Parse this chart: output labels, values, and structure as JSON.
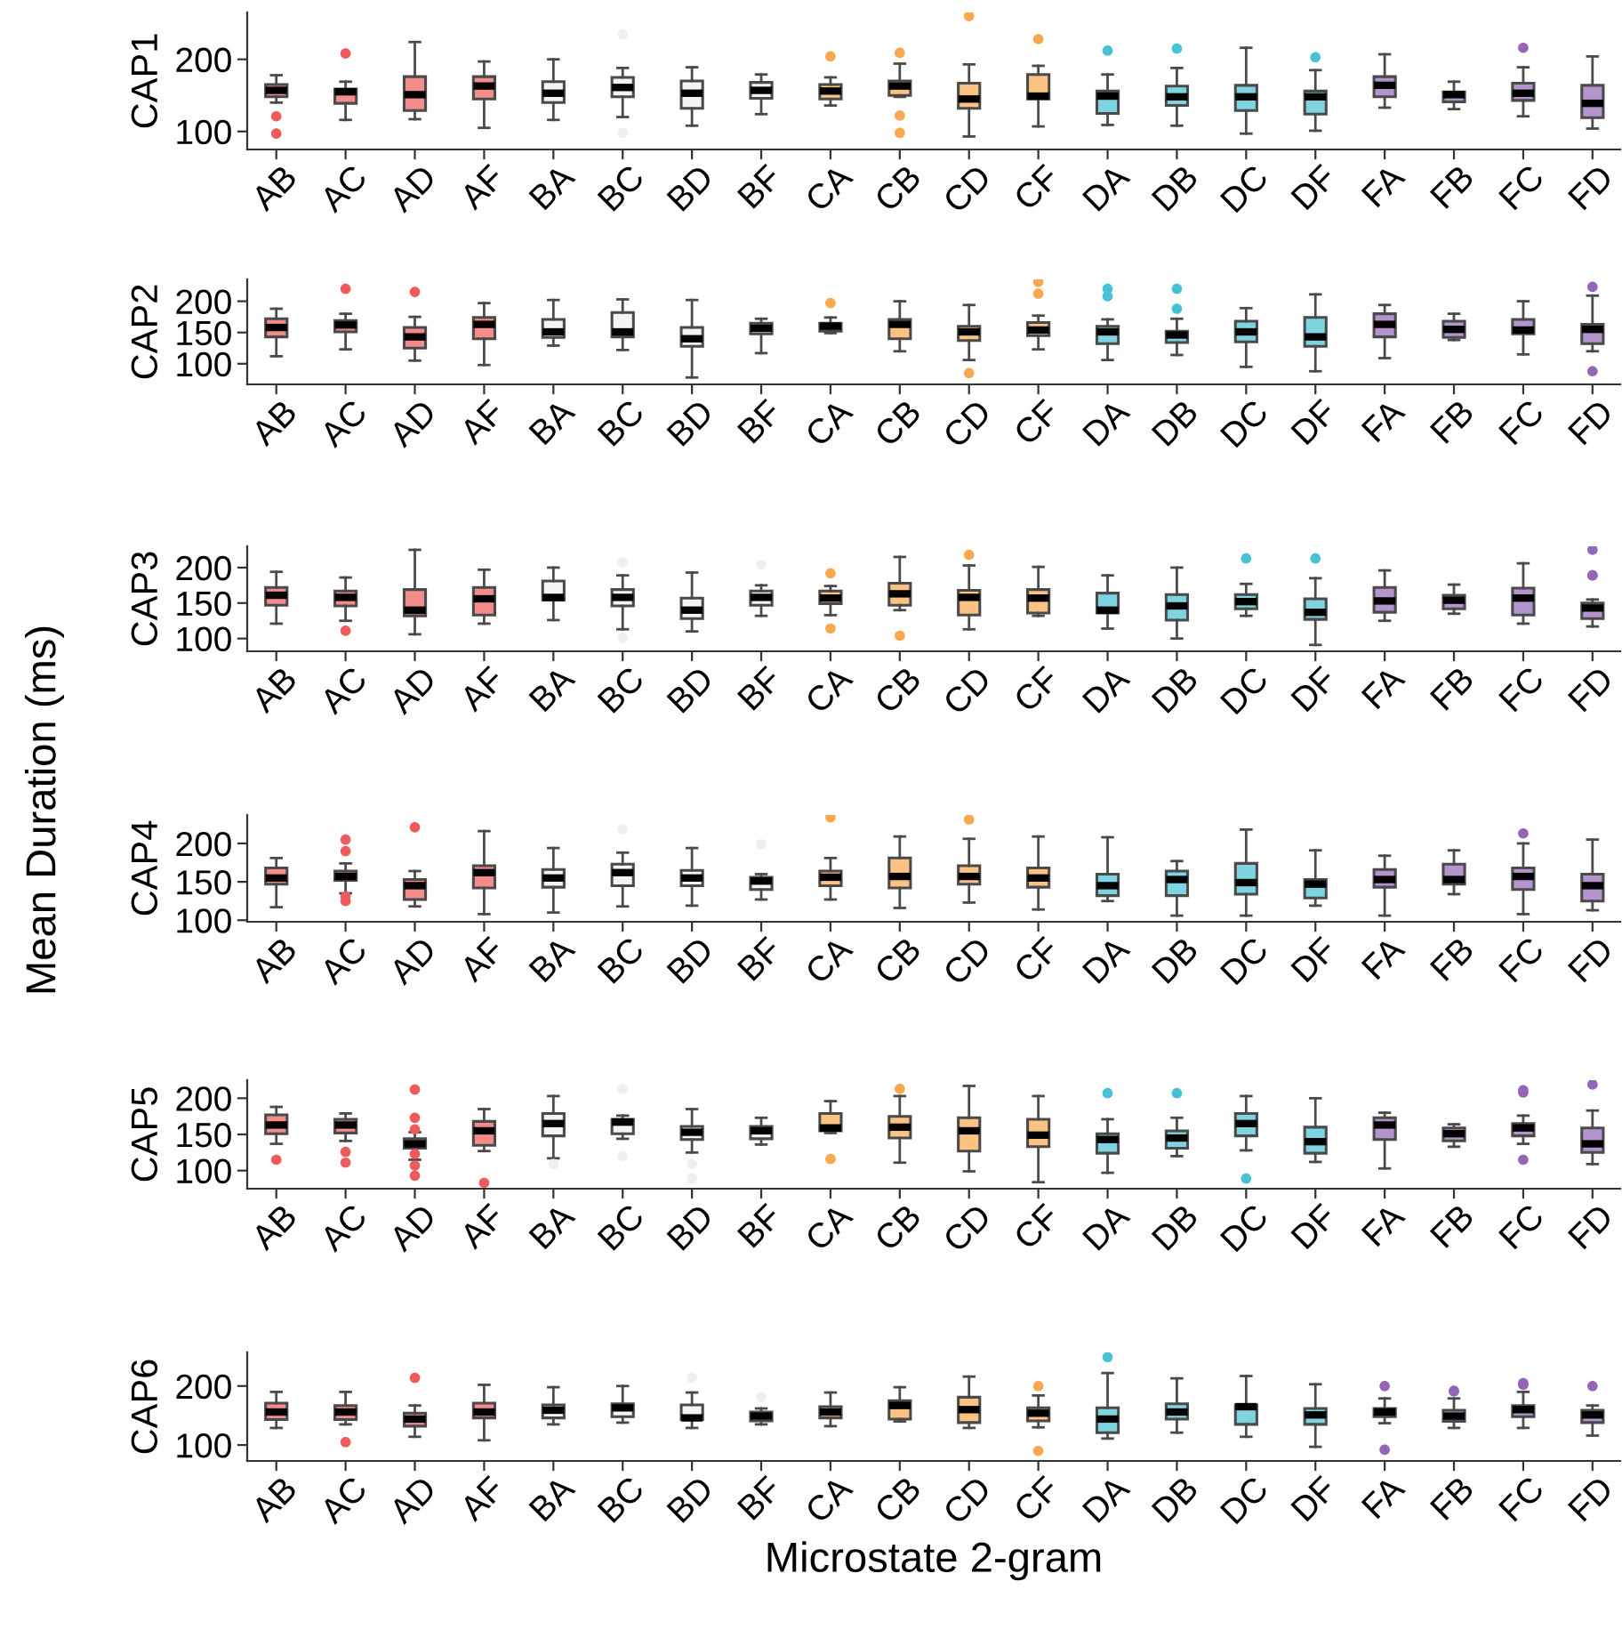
{
  "chart_data": [
    {
      "type": "box",
      "ylabel": "CAP1",
      "ylim": [
        75,
        265
      ],
      "yticks": [
        100,
        200
      ],
      "categories": [
        "AB",
        "AC",
        "AD",
        "AF",
        "BA",
        "BC",
        "BD",
        "BF",
        "CA",
        "CB",
        "CD",
        "CF",
        "DA",
        "DB",
        "DC",
        "DF",
        "FA",
        "FB",
        "FC",
        "FD"
      ],
      "colors": [
        "#f48c8c",
        "#f48c8c",
        "#f48c8c",
        "#f48c8c",
        "#f4f4f4",
        "#f4f4f4",
        "#f4f4f4",
        "#f4f4f4",
        "#fac384",
        "#fac384",
        "#fac384",
        "#fac384",
        "#7ed4e1",
        "#7ed4e1",
        "#7ed4e1",
        "#7ed4e1",
        "#b494cd",
        "#b494cd",
        "#b494cd",
        "#b494cd"
      ],
      "boxes": [
        {
          "low": 140,
          "q1": 148,
          "median": 157,
          "q3": 165,
          "high": 178,
          "outliers": [
            121,
            97
          ]
        },
        {
          "low": 116,
          "q1": 139,
          "median": 155,
          "q3": 159,
          "high": 169,
          "outliers": [
            208
          ]
        },
        {
          "low": 117,
          "q1": 129,
          "median": 151,
          "q3": 176,
          "high": 224
        },
        {
          "low": 105,
          "q1": 145,
          "median": 163,
          "q3": 176,
          "high": 197
        },
        {
          "low": 116,
          "q1": 140,
          "median": 153,
          "q3": 169,
          "high": 200
        },
        {
          "low": 120,
          "q1": 148,
          "median": 161,
          "q3": 175,
          "high": 188,
          "outliers": [
            235,
            98
          ]
        },
        {
          "low": 108,
          "q1": 132,
          "median": 153,
          "q3": 170,
          "high": 189
        },
        {
          "low": 124,
          "q1": 146,
          "median": 157,
          "q3": 168,
          "high": 179
        },
        {
          "low": 136,
          "q1": 145,
          "median": 156,
          "q3": 165,
          "high": 175,
          "outliers": [
            204
          ]
        },
        {
          "low": 148,
          "q1": 150,
          "median": 163,
          "q3": 170,
          "high": 194,
          "outliers": [
            209,
            122,
            98
          ]
        },
        {
          "low": 93,
          "q1": 132,
          "median": 145,
          "q3": 167,
          "high": 193,
          "outliers": [
            260
          ]
        },
        {
          "low": 107,
          "q1": 145,
          "median": 149,
          "q3": 179,
          "high": 191,
          "outliers": [
            228
          ]
        },
        {
          "low": 109,
          "q1": 125,
          "median": 149,
          "q3": 156,
          "high": 179,
          "outliers": [
            212
          ]
        },
        {
          "low": 108,
          "q1": 136,
          "median": 148,
          "q3": 163,
          "high": 188,
          "outliers": [
            215
          ]
        },
        {
          "low": 97,
          "q1": 129,
          "median": 148,
          "q3": 164,
          "high": 216
        },
        {
          "low": 101,
          "q1": 124,
          "median": 148,
          "q3": 156,
          "high": 185,
          "outliers": [
            203
          ]
        },
        {
          "low": 133,
          "q1": 148,
          "median": 164,
          "q3": 176,
          "high": 207
        },
        {
          "low": 131,
          "q1": 141,
          "median": 151,
          "q3": 155,
          "high": 169
        },
        {
          "low": 121,
          "q1": 143,
          "median": 153,
          "q3": 167,
          "high": 189,
          "outliers": [
            216
          ]
        },
        {
          "low": 104,
          "q1": 119,
          "median": 139,
          "q3": 164,
          "high": 204
        }
      ]
    },
    {
      "type": "box",
      "ylabel": "CAP2",
      "ylim": [
        67,
        235
      ],
      "yticks": [
        100,
        150,
        200
      ],
      "categories": [
        "AB",
        "AC",
        "AD",
        "AF",
        "BA",
        "BC",
        "BD",
        "BF",
        "CA",
        "CB",
        "CD",
        "CF",
        "DA",
        "DB",
        "DC",
        "DF",
        "FA",
        "FB",
        "FC",
        "FD"
      ],
      "colors": [
        "#f48c8c",
        "#f48c8c",
        "#f48c8c",
        "#f48c8c",
        "#f4f4f4",
        "#f4f4f4",
        "#f4f4f4",
        "#f4f4f4",
        "#fac384",
        "#fac384",
        "#fac384",
        "#fac384",
        "#7ed4e1",
        "#7ed4e1",
        "#7ed4e1",
        "#7ed4e1",
        "#b494cd",
        "#b494cd",
        "#b494cd",
        "#b494cd"
      ],
      "boxes": [
        {
          "low": 112,
          "q1": 143,
          "median": 158,
          "q3": 172,
          "high": 188
        },
        {
          "low": 123,
          "q1": 151,
          "median": 162,
          "q3": 169,
          "high": 180,
          "outliers": [
            220
          ]
        },
        {
          "low": 105,
          "q1": 125,
          "median": 143,
          "q3": 158,
          "high": 175,
          "outliers": [
            215
          ]
        },
        {
          "low": 98,
          "q1": 140,
          "median": 163,
          "q3": 174,
          "high": 197
        },
        {
          "low": 129,
          "q1": 142,
          "median": 151,
          "q3": 171,
          "high": 202
        },
        {
          "low": 122,
          "q1": 143,
          "median": 151,
          "q3": 182,
          "high": 203
        },
        {
          "low": 78,
          "q1": 128,
          "median": 140,
          "q3": 158,
          "high": 202
        },
        {
          "low": 117,
          "q1": 148,
          "median": 157,
          "q3": 165,
          "high": 172
        },
        {
          "low": 149,
          "q1": 152,
          "median": 160,
          "q3": 165,
          "high": 174,
          "outliers": [
            197
          ]
        },
        {
          "low": 120,
          "q1": 140,
          "median": 163,
          "q3": 171,
          "high": 200
        },
        {
          "low": 106,
          "q1": 137,
          "median": 151,
          "q3": 160,
          "high": 194,
          "outliers": [
            85
          ]
        },
        {
          "low": 123,
          "q1": 145,
          "median": 154,
          "q3": 166,
          "high": 177,
          "outliers": [
            231,
            212
          ]
        },
        {
          "low": 106,
          "q1": 132,
          "median": 151,
          "q3": 160,
          "high": 171,
          "outliers": [
            220,
            208
          ]
        },
        {
          "low": 114,
          "q1": 134,
          "median": 146,
          "q3": 152,
          "high": 172,
          "outliers": [
            220,
            188
          ]
        },
        {
          "low": 95,
          "q1": 135,
          "median": 151,
          "q3": 168,
          "high": 189
        },
        {
          "low": 88,
          "q1": 128,
          "median": 143,
          "q3": 174,
          "high": 211
        },
        {
          "low": 109,
          "q1": 143,
          "median": 163,
          "q3": 180,
          "high": 194
        },
        {
          "low": 138,
          "q1": 142,
          "median": 155,
          "q3": 168,
          "high": 180
        },
        {
          "low": 115,
          "q1": 148,
          "median": 154,
          "q3": 171,
          "high": 200
        },
        {
          "low": 120,
          "q1": 132,
          "median": 155,
          "q3": 163,
          "high": 209,
          "outliers": [
            223,
            88
          ]
        }
      ]
    },
    {
      "type": "box",
      "ylabel": "CAP3",
      "ylim": [
        82,
        230
      ],
      "yticks": [
        100,
        150,
        200
      ],
      "annotations": [
        "Mean Duration (ms)"
      ],
      "categories": [
        "AB",
        "AC",
        "AD",
        "AF",
        "BA",
        "BC",
        "BD",
        "BF",
        "CA",
        "CB",
        "CD",
        "CF",
        "DA",
        "DB",
        "DC",
        "DF",
        "FA",
        "FB",
        "FC",
        "FD"
      ],
      "colors": [
        "#f48c8c",
        "#f48c8c",
        "#f48c8c",
        "#f48c8c",
        "#f4f4f4",
        "#f4f4f4",
        "#f4f4f4",
        "#f4f4f4",
        "#fac384",
        "#fac384",
        "#fac384",
        "#fac384",
        "#7ed4e1",
        "#7ed4e1",
        "#7ed4e1",
        "#7ed4e1",
        "#b494cd",
        "#b494cd",
        "#b494cd",
        "#b494cd"
      ],
      "boxes": [
        {
          "low": 121,
          "q1": 147,
          "median": 161,
          "q3": 172,
          "high": 194
        },
        {
          "low": 125,
          "q1": 146,
          "median": 158,
          "q3": 167,
          "high": 186,
          "outliers": [
            111
          ]
        },
        {
          "low": 106,
          "q1": 132,
          "median": 140,
          "q3": 169,
          "high": 225
        },
        {
          "low": 121,
          "q1": 133,
          "median": 156,
          "q3": 172,
          "high": 197
        },
        {
          "low": 126,
          "q1": 154,
          "median": 158,
          "q3": 181,
          "high": 200
        },
        {
          "low": 113,
          "q1": 146,
          "median": 158,
          "q3": 169,
          "high": 189,
          "outliers": [
            207,
            101
          ]
        },
        {
          "low": 110,
          "q1": 128,
          "median": 140,
          "q3": 157,
          "high": 193
        },
        {
          "low": 132,
          "q1": 147,
          "median": 158,
          "q3": 167,
          "high": 175,
          "outliers": [
            204
          ]
        },
        {
          "low": 133,
          "q1": 149,
          "median": 157,
          "q3": 167,
          "high": 174,
          "outliers": [
            192,
            114
          ]
        },
        {
          "low": 140,
          "q1": 147,
          "median": 163,
          "q3": 178,
          "high": 215,
          "outliers": [
            104
          ]
        },
        {
          "low": 113,
          "q1": 133,
          "median": 158,
          "q3": 168,
          "high": 203,
          "outliers": [
            218
          ]
        },
        {
          "low": 132,
          "q1": 136,
          "median": 157,
          "q3": 169,
          "high": 201
        },
        {
          "low": 114,
          "q1": 136,
          "median": 140,
          "q3": 164,
          "high": 189
        },
        {
          "low": 100,
          "q1": 126,
          "median": 146,
          "q3": 162,
          "high": 200
        },
        {
          "low": 132,
          "q1": 142,
          "median": 152,
          "q3": 162,
          "high": 177,
          "outliers": [
            213
          ]
        },
        {
          "low": 91,
          "q1": 127,
          "median": 137,
          "q3": 156,
          "high": 185,
          "outliers": [
            213
          ]
        },
        {
          "low": 125,
          "q1": 137,
          "median": 153,
          "q3": 172,
          "high": 196
        },
        {
          "low": 135,
          "q1": 142,
          "median": 154,
          "q3": 161,
          "high": 176
        },
        {
          "low": 121,
          "q1": 133,
          "median": 157,
          "q3": 171,
          "high": 206
        },
        {
          "low": 117,
          "q1": 128,
          "median": 143,
          "q3": 150,
          "high": 155,
          "outliers": [
            225,
            189,
            189
          ]
        }
      ]
    },
    {
      "type": "box",
      "ylabel": "CAP4",
      "ylim": [
        98,
        237
      ],
      "yticks": [
        100,
        150,
        200
      ],
      "categories": [
        "AB",
        "AC",
        "AD",
        "AF",
        "BA",
        "BC",
        "BD",
        "BF",
        "CA",
        "CB",
        "CD",
        "CF",
        "DA",
        "DB",
        "DC",
        "DF",
        "FA",
        "FB",
        "FC",
        "FD"
      ],
      "colors": [
        "#f48c8c",
        "#f48c8c",
        "#f48c8c",
        "#f48c8c",
        "#f4f4f4",
        "#f4f4f4",
        "#f4f4f4",
        "#f4f4f4",
        "#fac384",
        "#fac384",
        "#fac384",
        "#fac384",
        "#7ed4e1",
        "#7ed4e1",
        "#7ed4e1",
        "#7ed4e1",
        "#b494cd",
        "#b494cd",
        "#b494cd",
        "#b494cd"
      ],
      "boxes": [
        {
          "low": 117,
          "q1": 147,
          "median": 155,
          "q3": 168,
          "high": 181
        },
        {
          "low": 135,
          "q1": 152,
          "median": 157,
          "q3": 164,
          "high": 174,
          "outliers": [
            205,
            190,
            131,
            125
          ]
        },
        {
          "low": 118,
          "q1": 127,
          "median": 145,
          "q3": 153,
          "high": 164,
          "outliers": [
            221
          ]
        },
        {
          "low": 108,
          "q1": 142,
          "median": 162,
          "q3": 171,
          "high": 216
        },
        {
          "low": 110,
          "q1": 143,
          "median": 155,
          "q3": 166,
          "high": 194
        },
        {
          "low": 118,
          "q1": 145,
          "median": 162,
          "q3": 173,
          "high": 188,
          "outliers": [
            218
          ]
        },
        {
          "low": 119,
          "q1": 145,
          "median": 155,
          "q3": 165,
          "high": 194
        },
        {
          "low": 127,
          "q1": 140,
          "median": 151,
          "q3": 156,
          "high": 160,
          "outliers": [
            199
          ]
        },
        {
          "low": 127,
          "q1": 145,
          "median": 156,
          "q3": 164,
          "high": 181,
          "outliers": [
            234
          ]
        },
        {
          "low": 116,
          "q1": 142,
          "median": 157,
          "q3": 181,
          "high": 209
        },
        {
          "low": 123,
          "q1": 147,
          "median": 157,
          "q3": 171,
          "high": 206,
          "outliers": [
            231
          ]
        },
        {
          "low": 114,
          "q1": 143,
          "median": 155,
          "q3": 168,
          "high": 209
        },
        {
          "low": 125,
          "q1": 132,
          "median": 145,
          "q3": 160,
          "high": 208
        },
        {
          "low": 106,
          "q1": 132,
          "median": 153,
          "q3": 164,
          "high": 177
        },
        {
          "low": 106,
          "q1": 134,
          "median": 149,
          "q3": 174,
          "high": 218
        },
        {
          "low": 119,
          "q1": 129,
          "median": 147,
          "q3": 153,
          "high": 191
        },
        {
          "low": 106,
          "q1": 143,
          "median": 153,
          "q3": 166,
          "high": 184
        },
        {
          "low": 134,
          "q1": 147,
          "median": 153,
          "q3": 173,
          "high": 191
        },
        {
          "low": 108,
          "q1": 140,
          "median": 157,
          "q3": 168,
          "high": 200,
          "outliers": [
            213
          ]
        },
        {
          "low": 113,
          "q1": 125,
          "median": 145,
          "q3": 160,
          "high": 205
        }
      ]
    },
    {
      "type": "box",
      "ylabel": "CAP5",
      "ylim": [
        75,
        225
      ],
      "yticks": [
        100,
        150,
        200
      ],
      "categories": [
        "AB",
        "AC",
        "AD",
        "AF",
        "BA",
        "BC",
        "BD",
        "BF",
        "CA",
        "CB",
        "CD",
        "CF",
        "DA",
        "DB",
        "DC",
        "DF",
        "FA",
        "FB",
        "FC",
        "FD"
      ],
      "colors": [
        "#f48c8c",
        "#f48c8c",
        "#f48c8c",
        "#f48c8c",
        "#f4f4f4",
        "#f4f4f4",
        "#f4f4f4",
        "#f4f4f4",
        "#fac384",
        "#fac384",
        "#fac384",
        "#fac384",
        "#7ed4e1",
        "#7ed4e1",
        "#7ed4e1",
        "#7ed4e1",
        "#b494cd",
        "#b494cd",
        "#b494cd",
        "#b494cd"
      ],
      "boxes": [
        {
          "low": 137,
          "q1": 151,
          "median": 163,
          "q3": 177,
          "high": 188,
          "outliers": [
            115
          ]
        },
        {
          "low": 141,
          "q1": 152,
          "median": 163,
          "q3": 171,
          "high": 179,
          "outliers": [
            126,
            111
          ]
        },
        {
          "low": 115,
          "q1": 131,
          "median": 137,
          "q3": 144,
          "high": 153,
          "outliers": [
            212,
            173,
            157,
            123,
            107,
            93
          ]
        },
        {
          "low": 127,
          "q1": 135,
          "median": 155,
          "q3": 168,
          "high": 185,
          "outliers": [
            83
          ]
        },
        {
          "low": 117,
          "q1": 148,
          "median": 165,
          "q3": 179,
          "high": 203,
          "outliers": [
            109
          ]
        },
        {
          "low": 144,
          "q1": 151,
          "median": 167,
          "q3": 171,
          "high": 176,
          "outliers": [
            213,
            120
          ]
        },
        {
          "low": 125,
          "q1": 143,
          "median": 153,
          "q3": 161,
          "high": 185,
          "outliers": [
            109,
            89
          ]
        },
        {
          "low": 136,
          "q1": 144,
          "median": 155,
          "q3": 161,
          "high": 173
        },
        {
          "low": 152,
          "q1": 155,
          "median": 159,
          "q3": 179,
          "high": 196,
          "outliers": [
            116
          ]
        },
        {
          "low": 111,
          "q1": 145,
          "median": 160,
          "q3": 175,
          "high": 203,
          "outliers": [
            213
          ]
        },
        {
          "low": 99,
          "q1": 127,
          "median": 155,
          "q3": 173,
          "high": 217
        },
        {
          "low": 84,
          "q1": 133,
          "median": 149,
          "q3": 171,
          "high": 203
        },
        {
          "low": 97,
          "q1": 124,
          "median": 143,
          "q3": 151,
          "high": 171,
          "outliers": [
            207
          ]
        },
        {
          "low": 120,
          "q1": 131,
          "median": 145,
          "q3": 155,
          "high": 173,
          "outliers": [
            207
          ]
        },
        {
          "low": 128,
          "q1": 148,
          "median": 165,
          "q3": 179,
          "high": 203,
          "outliers": [
            89
          ]
        },
        {
          "low": 112,
          "q1": 124,
          "median": 140,
          "q3": 160,
          "high": 200
        },
        {
          "low": 103,
          "q1": 143,
          "median": 163,
          "q3": 173,
          "high": 180
        },
        {
          "low": 133,
          "q1": 141,
          "median": 151,
          "q3": 159,
          "high": 164
        },
        {
          "low": 137,
          "q1": 148,
          "median": 159,
          "q3": 165,
          "high": 176,
          "outliers": [
            211,
            208,
            115
          ]
        },
        {
          "low": 109,
          "q1": 125,
          "median": 137,
          "q3": 159,
          "high": 183,
          "outliers": [
            219
          ]
        }
      ]
    },
    {
      "type": "box",
      "ylabel": "CAP6",
      "xlabel": "Microstate 2-gram",
      "ylim": [
        73,
        257
      ],
      "yticks": [
        100,
        200
      ],
      "categories": [
        "AB",
        "AC",
        "AD",
        "AF",
        "BA",
        "BC",
        "BD",
        "BF",
        "CA",
        "CB",
        "CD",
        "CF",
        "DA",
        "DB",
        "DC",
        "DF",
        "FA",
        "FB",
        "FC",
        "FD"
      ],
      "colors": [
        "#f48c8c",
        "#f48c8c",
        "#f48c8c",
        "#f48c8c",
        "#f4f4f4",
        "#f4f4f4",
        "#f4f4f4",
        "#f4f4f4",
        "#fac384",
        "#fac384",
        "#fac384",
        "#fac384",
        "#7ed4e1",
        "#7ed4e1",
        "#7ed4e1",
        "#7ed4e1",
        "#b494cd",
        "#b494cd",
        "#b494cd",
        "#b494cd"
      ],
      "boxes": [
        {
          "low": 129,
          "q1": 143,
          "median": 156,
          "q3": 171,
          "high": 190
        },
        {
          "low": 135,
          "q1": 143,
          "median": 156,
          "q3": 167,
          "high": 190,
          "outliers": [
            105
          ]
        },
        {
          "low": 114,
          "q1": 132,
          "median": 144,
          "q3": 154,
          "high": 167,
          "outliers": [
            214
          ]
        },
        {
          "low": 108,
          "q1": 146,
          "median": 156,
          "q3": 171,
          "high": 202
        },
        {
          "low": 135,
          "q1": 146,
          "median": 159,
          "q3": 168,
          "high": 198
        },
        {
          "low": 138,
          "q1": 148,
          "median": 163,
          "q3": 170,
          "high": 200
        },
        {
          "low": 129,
          "q1": 143,
          "median": 146,
          "q3": 168,
          "high": 189,
          "outliers": [
            214
          ]
        },
        {
          "low": 135,
          "q1": 141,
          "median": 149,
          "q3": 156,
          "high": 162,
          "outliers": [
            181
          ]
        },
        {
          "low": 132,
          "q1": 146,
          "median": 156,
          "q3": 165,
          "high": 189
        },
        {
          "low": 140,
          "q1": 144,
          "median": 167,
          "q3": 175,
          "high": 198
        },
        {
          "low": 129,
          "q1": 138,
          "median": 160,
          "q3": 181,
          "high": 216
        },
        {
          "low": 130,
          "q1": 141,
          "median": 154,
          "q3": 163,
          "high": 184,
          "outliers": [
            200,
            90
          ]
        },
        {
          "low": 111,
          "q1": 121,
          "median": 144,
          "q3": 163,
          "high": 222,
          "outliers": [
            249
          ]
        },
        {
          "low": 121,
          "q1": 144,
          "median": 156,
          "q3": 170,
          "high": 213
        },
        {
          "low": 114,
          "q1": 135,
          "median": 165,
          "q3": 168,
          "high": 217
        },
        {
          "low": 97,
          "q1": 135,
          "median": 151,
          "q3": 162,
          "high": 203
        },
        {
          "low": 137,
          "q1": 148,
          "median": 156,
          "q3": 162,
          "high": 179,
          "outliers": [
            200,
            92
          ]
        },
        {
          "low": 129,
          "q1": 140,
          "median": 149,
          "q3": 159,
          "high": 179,
          "outliers": [
            192,
            191
          ]
        },
        {
          "low": 129,
          "q1": 148,
          "median": 160,
          "q3": 167,
          "high": 190,
          "outliers": [
            205,
            202
          ]
        },
        {
          "low": 116,
          "q1": 138,
          "median": 151,
          "q3": 159,
          "high": 167,
          "outliers": [
            200
          ]
        }
      ]
    }
  ]
}
